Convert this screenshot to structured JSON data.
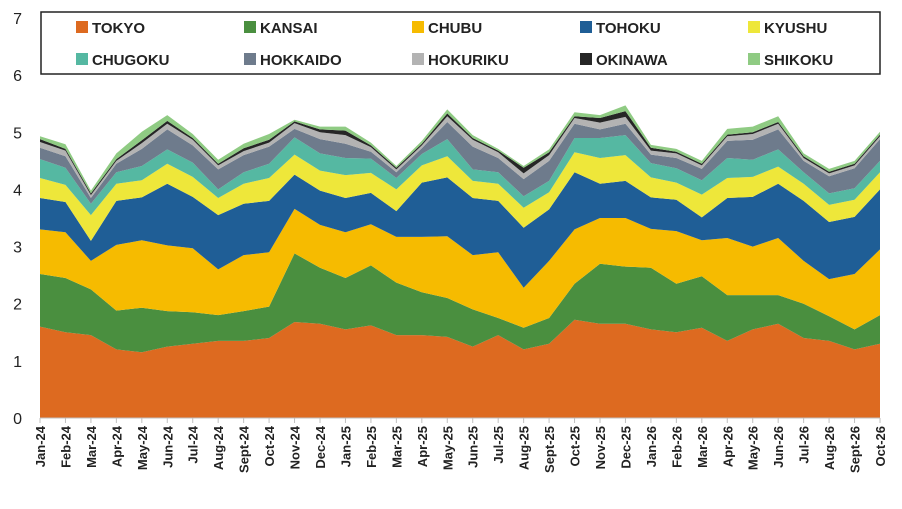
{
  "chart_data": {
    "type": "area",
    "stacked": true,
    "categories": [
      "Jan-24",
      "Feb-24",
      "Mar-24",
      "Apr-24",
      "May-24",
      "Jun-24",
      "Jul-24",
      "Aug-24",
      "Sept-24",
      "Oct-24",
      "Nov-24",
      "Dec-24",
      "Jan-25",
      "Feb-25",
      "Mar-25",
      "Apr-25",
      "May-25",
      "Jun-25",
      "Jul-25",
      "Aug-25",
      "Sept-25",
      "Oct-25",
      "Nov-25",
      "Dec-25",
      "Jan-26",
      "Feb-26",
      "Mar-26",
      "Apr-26",
      "May-26",
      "Jun-26",
      "Jul-26",
      "Aug-26",
      "Sept-26",
      "Oct-26"
    ],
    "ylim": [
      0,
      7
    ],
    "yticks": [
      "0",
      "1",
      "2",
      "3",
      "4",
      "5",
      "6",
      "7"
    ],
    "grid": false,
    "legend_position": "top",
    "series": [
      {
        "name": "TOKYO",
        "color": "#DD6A20",
        "values": [
          1.6,
          1.5,
          1.45,
          1.2,
          1.15,
          1.25,
          1.3,
          1.35,
          1.35,
          1.4,
          1.68,
          1.65,
          1.55,
          1.62,
          1.45,
          1.45,
          1.42,
          1.25,
          1.45,
          1.2,
          1.3,
          1.72,
          1.65,
          1.65,
          1.55,
          1.5,
          1.58,
          1.35,
          1.55,
          1.65,
          1.4,
          1.35,
          1.2,
          1.3
        ]
      },
      {
        "name": "KANSAI",
        "color": "#4A8F3F",
        "values": [
          0.92,
          0.95,
          0.8,
          0.68,
          0.78,
          0.62,
          0.55,
          0.45,
          0.52,
          0.55,
          1.2,
          0.98,
          0.9,
          1.05,
          0.92,
          0.75,
          0.68,
          0.65,
          0.3,
          0.38,
          0.45,
          0.63,
          1.05,
          1.0,
          1.08,
          0.85,
          0.9,
          0.8,
          0.6,
          0.5,
          0.6,
          0.43,
          0.35,
          0.5
        ]
      },
      {
        "name": "CHUBU",
        "color": "#F6BB00",
        "values": [
          0.78,
          0.8,
          0.5,
          1.15,
          1.18,
          1.15,
          1.12,
          0.8,
          0.98,
          0.95,
          0.78,
          0.75,
          0.8,
          0.72,
          0.8,
          0.97,
          1.08,
          0.95,
          1.15,
          0.7,
          1.0,
          0.95,
          0.8,
          0.85,
          0.68,
          0.92,
          0.63,
          1.0,
          0.85,
          1.0,
          0.75,
          0.65,
          0.97,
          1.15
        ]
      },
      {
        "name": "TOHOKU",
        "color": "#1F5E96",
        "values": [
          0.55,
          0.53,
          0.35,
          0.77,
          0.75,
          1.08,
          0.9,
          0.95,
          0.9,
          0.9,
          0.6,
          0.6,
          0.6,
          0.55,
          0.45,
          0.95,
          1.03,
          1.0,
          0.9,
          1.05,
          0.9,
          1.0,
          0.6,
          0.65,
          0.55,
          0.55,
          0.4,
          0.7,
          0.87,
          0.95,
          1.05,
          1.0,
          1.0,
          1.05
        ]
      },
      {
        "name": "KYUSHU",
        "color": "#EEE73A",
        "values": [
          0.35,
          0.3,
          0.45,
          0.3,
          0.3,
          0.35,
          0.35,
          0.3,
          0.35,
          0.4,
          0.35,
          0.35,
          0.4,
          0.35,
          0.38,
          0.3,
          0.37,
          0.3,
          0.3,
          0.35,
          0.3,
          0.35,
          0.45,
          0.45,
          0.35,
          0.3,
          0.4,
          0.35,
          0.35,
          0.3,
          0.3,
          0.3,
          0.3,
          0.3
        ]
      },
      {
        "name": "CHUGOKU",
        "color": "#55B8A2",
        "values": [
          0.33,
          0.3,
          0.2,
          0.2,
          0.25,
          0.25,
          0.25,
          0.15,
          0.2,
          0.25,
          0.3,
          0.3,
          0.3,
          0.25,
          0.2,
          0.2,
          0.3,
          0.2,
          0.2,
          0.2,
          0.2,
          0.25,
          0.35,
          0.35,
          0.25,
          0.25,
          0.25,
          0.35,
          0.3,
          0.3,
          0.2,
          0.2,
          0.2,
          0.2
        ]
      },
      {
        "name": "HOKKAIDO",
        "color": "#6E7B8C",
        "values": [
          0.2,
          0.2,
          0.1,
          0.15,
          0.3,
          0.35,
          0.3,
          0.35,
          0.3,
          0.3,
          0.15,
          0.25,
          0.25,
          0.12,
          0.1,
          0.1,
          0.3,
          0.4,
          0.25,
          0.3,
          0.35,
          0.25,
          0.15,
          0.2,
          0.15,
          0.18,
          0.2,
          0.3,
          0.35,
          0.35,
          0.2,
          0.3,
          0.35,
          0.38
        ]
      },
      {
        "name": "HOKURIKU",
        "color": "#B3B3B3",
        "values": [
          0.1,
          0.1,
          0.05,
          0.05,
          0.1,
          0.1,
          0.1,
          0.07,
          0.07,
          0.07,
          0.1,
          0.12,
          0.15,
          0.08,
          0.05,
          0.05,
          0.1,
          0.12,
          0.1,
          0.1,
          0.1,
          0.1,
          0.12,
          0.12,
          0.07,
          0.08,
          0.06,
          0.08,
          0.1,
          0.1,
          0.05,
          0.05,
          0.05,
          0.05
        ]
      },
      {
        "name": "OKINAWA",
        "color": "#262626",
        "values": [
          0.05,
          0.03,
          0.03,
          0.03,
          0.05,
          0.05,
          0.03,
          0.03,
          0.05,
          0.05,
          0.03,
          0.05,
          0.08,
          0.03,
          0.03,
          0.03,
          0.05,
          0.03,
          0.03,
          0.1,
          0.05,
          0.03,
          0.08,
          0.1,
          0.05,
          0.03,
          0.03,
          0.03,
          0.03,
          0.03,
          0.03,
          0.03,
          0.03,
          0.03
        ]
      },
      {
        "name": "SHIKOKU",
        "color": "#8FCB83",
        "values": [
          0.05,
          0.08,
          0.05,
          0.1,
          0.15,
          0.1,
          0.07,
          0.07,
          0.08,
          0.1,
          0.03,
          0.05,
          0.07,
          0.05,
          0.03,
          0.05,
          0.07,
          0.05,
          0.03,
          0.03,
          0.05,
          0.07,
          0.05,
          0.1,
          0.05,
          0.05,
          0.05,
          0.1,
          0.1,
          0.1,
          0.05,
          0.05,
          0.05,
          0.05
        ]
      }
    ]
  }
}
